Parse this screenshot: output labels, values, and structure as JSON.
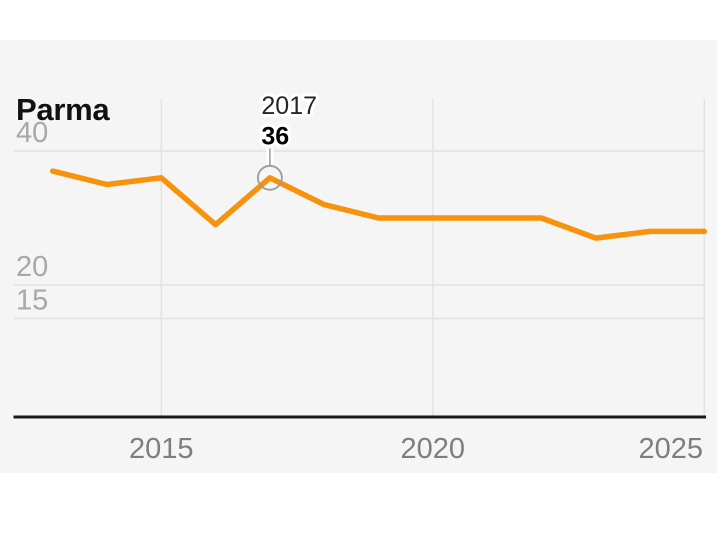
{
  "card": {
    "title": "Parma"
  },
  "chart_data": {
    "type": "line",
    "title": "Parma",
    "x": [
      2013,
      2014,
      2015,
      2016,
      2017,
      2018,
      2019,
      2020,
      2021,
      2022,
      2023,
      2024,
      2025
    ],
    "values": [
      37,
      35,
      36,
      29,
      36,
      32,
      30,
      30,
      30,
      30,
      27,
      28,
      28
    ],
    "x_ticks": [
      2015,
      2020,
      2025
    ],
    "y_ticks": [
      40,
      20,
      15
    ],
    "xlim": [
      2012.3,
      2025.2
    ],
    "ylim": [
      0,
      47.5
    ],
    "grid": true,
    "legend": false,
    "annotation": {
      "x": 2017,
      "y": 36,
      "year_label": "2017",
      "value_label": "36"
    }
  },
  "colors": {
    "page_bg": "#ffffff",
    "card_bg": "#f5f5f5",
    "grid": "#e2e2e2",
    "axis": "#1b1b1b",
    "line": "#f7920d",
    "marker": "#9b9b9b",
    "y_tick_text": "#a8a8a8",
    "x_tick_text": "#7e7e7e",
    "title_text": "#111111",
    "annotation_year": "#262626",
    "annotation_value": "#000000"
  }
}
